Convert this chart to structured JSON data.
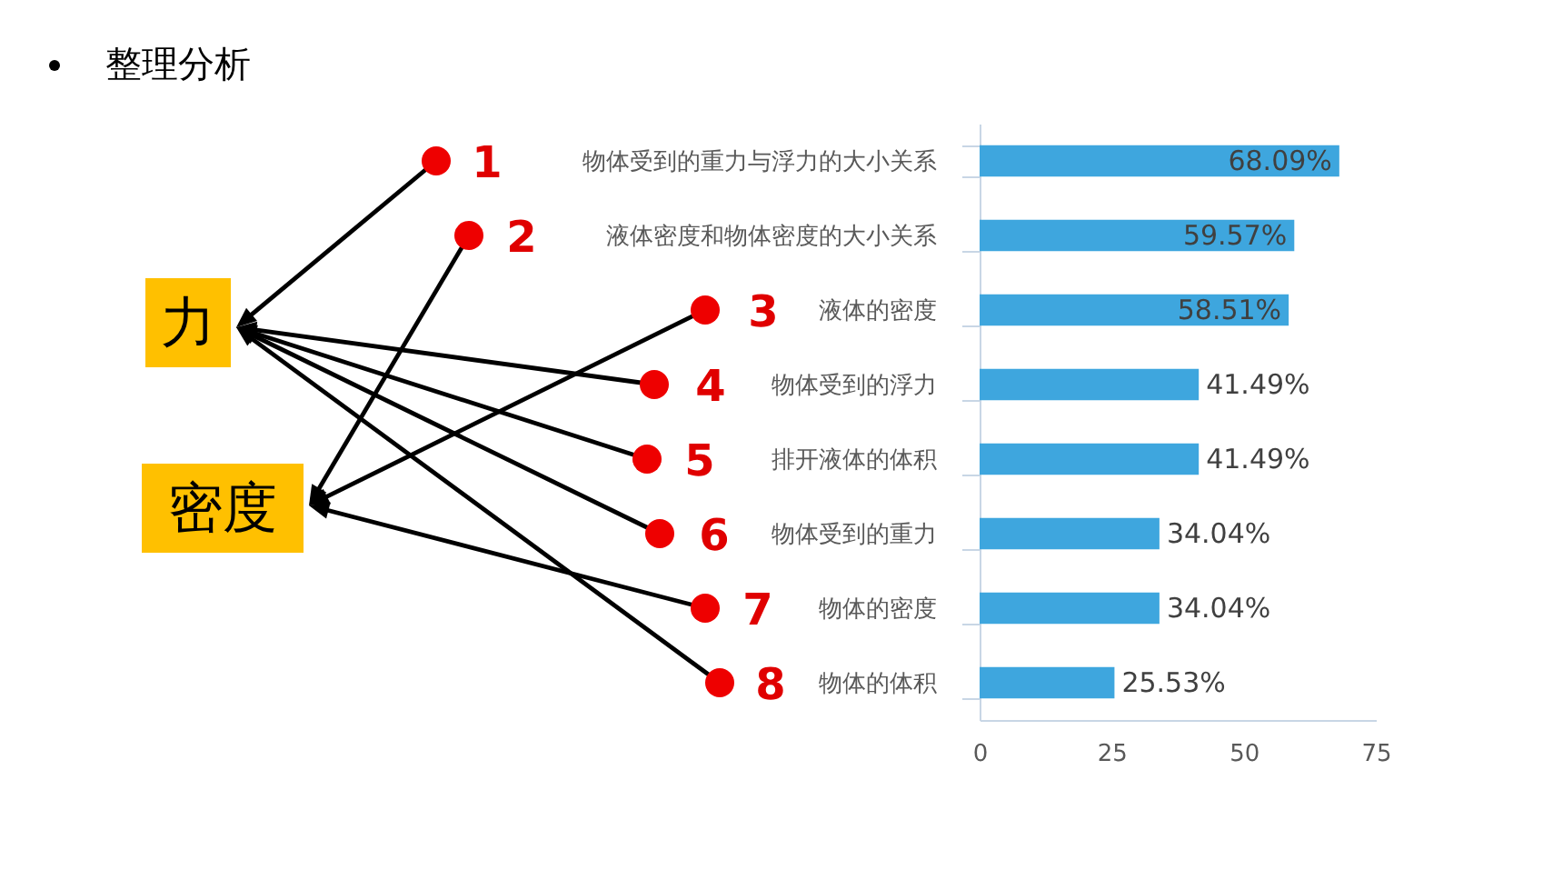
{
  "chart_data": {
    "type": "bar",
    "orientation": "horizontal",
    "title": "整理分析",
    "categories": [
      "物体受到的重力与浮力的大小关系",
      "液体密度和物体密度的大小关系",
      "液体的密度",
      "物体受到的浮力",
      "排开液体的体积",
      "物体受到的重力",
      "物体的密度",
      "物体的体积"
    ],
    "values": [
      68.09,
      59.57,
      58.51,
      41.49,
      41.49,
      34.04,
      34.04,
      25.53
    ],
    "value_labels": [
      "68.09%",
      "59.57%",
      "58.51%",
      "41.49%",
      "41.49%",
      "34.04%",
      "34.04%",
      "25.53%"
    ],
    "color": "#3ea6de",
    "xlim": [
      0,
      75
    ],
    "xticks": [
      0,
      25,
      50,
      75
    ],
    "grid": false,
    "annotations": [
      "1",
      "2",
      "3",
      "4",
      "5",
      "6",
      "7",
      "8",
      "力",
      "密度"
    ]
  }
}
